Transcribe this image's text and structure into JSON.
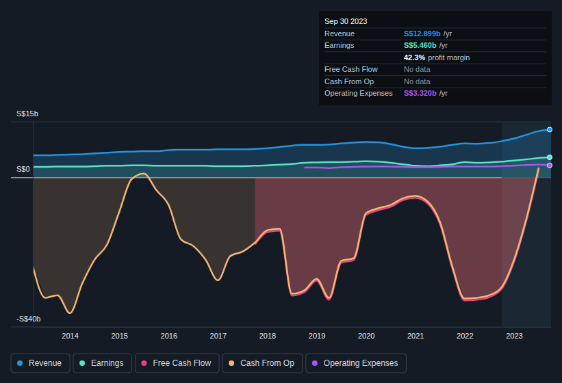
{
  "chart_data": {
    "type": "line",
    "x": [
      2013.25,
      2013.5,
      2013.75,
      2014,
      2014.25,
      2014.5,
      2014.75,
      2015,
      2015.25,
      2015.5,
      2015.75,
      2016,
      2016.25,
      2016.5,
      2016.75,
      2017,
      2017.25,
      2017.5,
      2017.75,
      2018,
      2018.25,
      2018.5,
      2018.75,
      2019,
      2019.25,
      2019.5,
      2019.75,
      2020,
      2020.25,
      2020.5,
      2020.75,
      2021,
      2021.25,
      2021.5,
      2021.75,
      2022,
      2022.25,
      2022.5,
      2022.75,
      2023,
      2023.25,
      2023.5,
      2023.75
    ],
    "xlim": [
      2013.25,
      2023.75
    ],
    "xticks": [
      2014,
      2015,
      2016,
      2017,
      2018,
      2019,
      2020,
      2021,
      2022,
      2023
    ],
    "ylim": [
      -40,
      15
    ],
    "yticks": [
      {
        "value": -40,
        "label": "-S$40b"
      },
      {
        "value": 0,
        "label": "S$0"
      },
      {
        "value": 15,
        "label": "S$15b"
      }
    ],
    "grid": true,
    "legend": "bottom",
    "series": [
      {
        "name": "Revenue",
        "color": "#2394df",
        "type": "area",
        "values": [
          6.0,
          6.0,
          6.1,
          6.2,
          6.3,
          6.5,
          6.7,
          6.9,
          7.0,
          7.1,
          7.1,
          7.4,
          7.5,
          7.5,
          7.5,
          7.6,
          7.6,
          7.6,
          7.7,
          7.9,
          8.2,
          8.6,
          8.8,
          8.8,
          8.9,
          9.2,
          9.4,
          9.6,
          9.5,
          9.0,
          8.3,
          7.9,
          8.0,
          8.3,
          8.8,
          9.2,
          9.1,
          9.3,
          9.8,
          10.5,
          11.5,
          12.5,
          12.899
        ]
      },
      {
        "name": "Earnings",
        "color": "#58e3c6",
        "type": "area",
        "values": [
          2.9,
          2.9,
          3.0,
          3.0,
          3.0,
          3.1,
          3.2,
          3.2,
          3.3,
          3.3,
          3.2,
          3.2,
          3.2,
          3.2,
          3.2,
          3.1,
          3.1,
          3.1,
          3.2,
          3.3,
          3.5,
          3.7,
          4.0,
          4.1,
          4.2,
          4.2,
          4.3,
          4.4,
          4.3,
          4.0,
          3.6,
          3.2,
          3.1,
          3.3,
          3.6,
          4.2,
          4.0,
          4.1,
          4.3,
          4.6,
          4.9,
          5.3,
          5.46
        ]
      },
      {
        "name": "Free Cash Flow",
        "color": "#e6457a",
        "type": "area",
        "values": [
          null,
          null,
          null,
          null,
          null,
          null,
          null,
          null,
          null,
          null,
          null,
          null,
          null,
          null,
          null,
          null,
          null,
          null,
          -17.9,
          -14.6,
          -14.2,
          -31.6,
          -30.7,
          -27.6,
          -32.7,
          -22.8,
          -22.1,
          -10,
          -8.7,
          -7.8,
          -6.0,
          -5.4,
          -6.9,
          -12.4,
          -24.3,
          -32.9,
          -32.7,
          -32.0,
          -29.8,
          -22.5,
          -11.5,
          2.2,
          null
        ]
      },
      {
        "name": "Cash From Op",
        "color": "#f2b676",
        "type": "area",
        "values": [
          -23.8,
          -32.2,
          -31.5,
          -36.3,
          -28.4,
          -22,
          -18,
          -9.2,
          -0.4,
          1.1,
          -3.3,
          -7.3,
          -16.5,
          -18.3,
          -22,
          -27.5,
          -21,
          -19.8,
          -17.4,
          -14.1,
          -13.7,
          -31.1,
          -30.2,
          -27.1,
          -32.2,
          -22.3,
          -21.6,
          -9.5,
          -8.2,
          -7.3,
          -5.5,
          -4.9,
          -6.4,
          -11.9,
          -23.8,
          -32.4,
          -32.2,
          -31.5,
          -29.3,
          -22,
          -11,
          2.7,
          null
        ]
      },
      {
        "name": "Operating Expenses",
        "color": "#a754f0",
        "type": "line",
        "values": [
          null,
          null,
          null,
          null,
          null,
          null,
          null,
          null,
          null,
          null,
          null,
          null,
          null,
          null,
          null,
          null,
          null,
          null,
          null,
          null,
          null,
          null,
          2.7,
          2.7,
          2.6,
          2.8,
          2.9,
          3.0,
          3.0,
          3.0,
          2.9,
          2.8,
          2.8,
          2.9,
          3.0,
          3.0,
          3.0,
          3.0,
          3.1,
          3.2,
          3.4,
          3.5,
          3.32
        ]
      }
    ]
  },
  "tooltip": {
    "date": "Sep 30 2023",
    "rows": [
      {
        "label": "Revenue",
        "value": "S$12.899b",
        "unit": "/yr",
        "color": "#2394df"
      },
      {
        "label": "Earnings",
        "value": "S$5.460b",
        "unit": "/yr",
        "color": "#58e3c6"
      },
      {
        "value": "42.3%",
        "unit": "profit margin",
        "color": "#ffffff"
      },
      {
        "label": "Free Cash Flow",
        "value": "No data",
        "color": "#8a929c"
      },
      {
        "label": "Cash From Op",
        "value": "No data",
        "color": "#8a929c"
      },
      {
        "label": "Operating Expenses",
        "value": "S$3.320b",
        "unit": "/yr",
        "color": "#a754f0"
      }
    ]
  }
}
